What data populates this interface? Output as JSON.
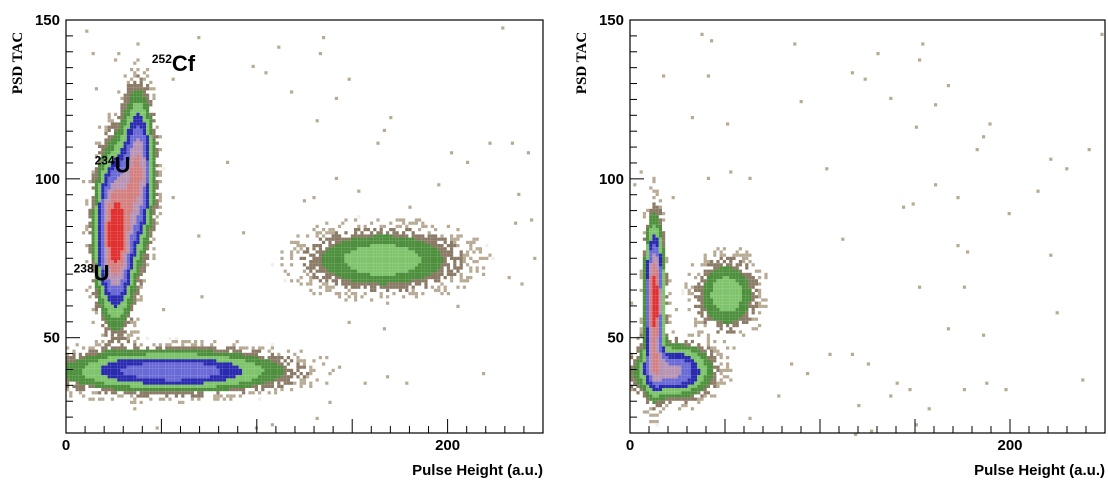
{
  "chart_data": [
    {
      "type": "heatmap",
      "title": "",
      "xlabel": "Pulse Height (a.u.)",
      "ylabel": "PSD TAC",
      "xlim": [
        0,
        250
      ],
      "ylim": [
        20,
        150
      ],
      "x_ticks": [
        0,
        200
      ],
      "y_ticks": [
        50,
        100,
        150
      ],
      "grid": false,
      "legend": "none",
      "colormap": [
        "#f2efea",
        "#b8ab95",
        "#8a7a66",
        "#4d8f3c",
        "#7ec46a",
        "#2a2ab0",
        "#6a6ad6",
        "#b894b4",
        "#d58080",
        "#e03030"
      ],
      "clusters": [
        {
          "x": 25,
          "y": 83,
          "sx": 6,
          "sy": 15,
          "peak": 1.0
        },
        {
          "x": 37,
          "y": 103,
          "sx": 5,
          "sy": 14,
          "peak": 0.7
        },
        {
          "x": 55,
          "y": 40,
          "sx": 35,
          "sy": 4,
          "peak": 0.55
        },
        {
          "x": 165,
          "y": 75,
          "sx": 25,
          "sy": 6,
          "peak": 0.3
        }
      ],
      "annotations": [
        {
          "mass": "252",
          "element": "Cf",
          "x": 45,
          "y": 134
        },
        {
          "mass": "234",
          "element": "U",
          "x": 15,
          "y": 102
        },
        {
          "mass": "238",
          "element": "U",
          "x": 4,
          "y": 68
        }
      ]
    },
    {
      "type": "heatmap",
      "title": "",
      "xlabel": "Pulse Height (a.u.)",
      "ylabel": "PSD TAC",
      "xlim": [
        0,
        250
      ],
      "ylim": [
        20,
        150
      ],
      "x_ticks": [
        0,
        200
      ],
      "y_ticks": [
        50,
        100,
        150
      ],
      "grid": false,
      "legend": "none",
      "colormap": [
        "#f2efea",
        "#b8ab95",
        "#8a7a66",
        "#4d8f3c",
        "#7ec46a",
        "#2a2ab0",
        "#6a6ad6",
        "#b894b4",
        "#d58080",
        "#e03030"
      ],
      "clusters": [
        {
          "x": 12,
          "y": 62,
          "sx": 3,
          "sy": 14,
          "peak": 1.0
        },
        {
          "x": 22,
          "y": 40,
          "sx": 12,
          "sy": 5,
          "peak": 0.6
        },
        {
          "x": 50,
          "y": 64,
          "sx": 10,
          "sy": 7,
          "peak": 0.3
        }
      ],
      "annotations": []
    }
  ]
}
